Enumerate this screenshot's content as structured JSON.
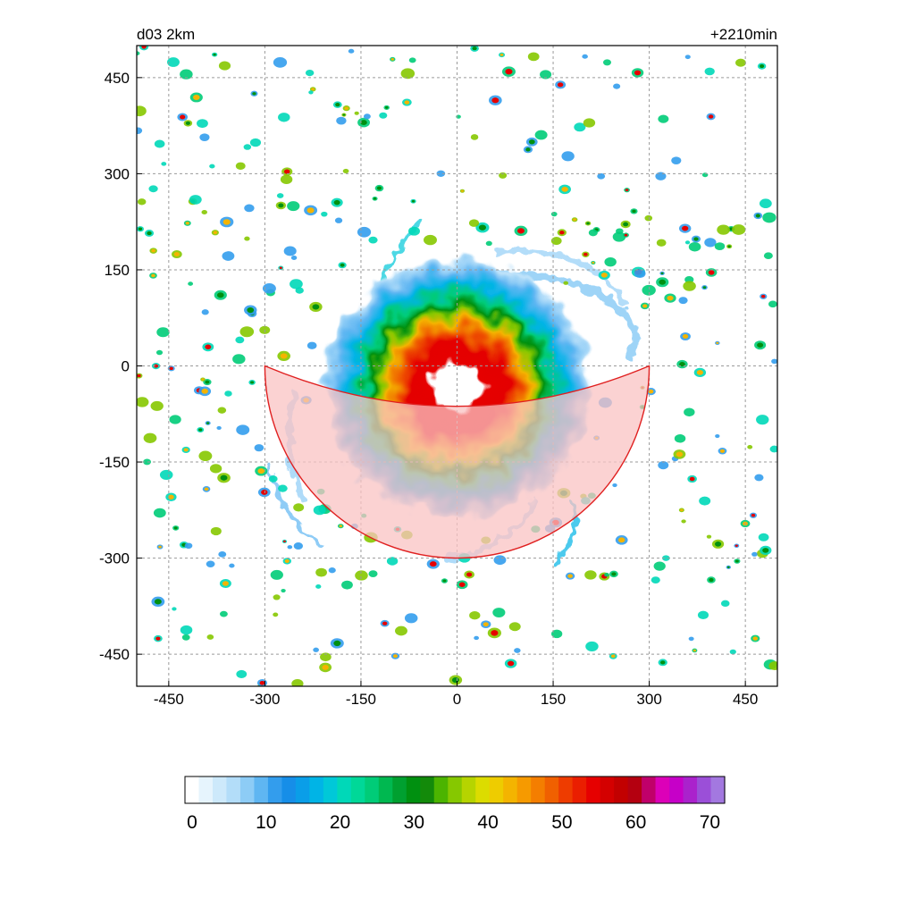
{
  "header": {
    "left_label": "d03 2km",
    "right_label": "+2210min"
  },
  "map": {
    "x_ticks": [
      "-450",
      "-300",
      "-150",
      "0",
      "150",
      "300",
      "450"
    ],
    "y_ticks": [
      "450",
      "300",
      "150",
      "0",
      "-150",
      "-300",
      "-450"
    ],
    "x_tick_values": [
      -450,
      -300,
      -150,
      0,
      150,
      300,
      450
    ],
    "y_tick_values": [
      450,
      300,
      150,
      0,
      -150,
      -300,
      -450
    ],
    "extent": {
      "xmin": -500,
      "xmax": 500,
      "ymin": -500,
      "ymax": 500
    },
    "grid": "dashed",
    "storm_center": {
      "x": 0,
      "y": -35
    },
    "eye_radius": 30,
    "highlight_sector": {
      "center_x": 0,
      "center_y": 0,
      "radius": 300,
      "from_direction": "west",
      "to_direction": "east",
      "side": "south",
      "fill_color": "#f9c3c3",
      "edge_color": "#e02020"
    }
  },
  "colorbar": {
    "tick_labels": [
      "0",
      "10",
      "20",
      "30",
      "40",
      "50",
      "60",
      "70"
    ],
    "tick_values": [
      0,
      10,
      20,
      30,
      40,
      50,
      60,
      70
    ],
    "min": 0,
    "max": 72,
    "colors": [
      "#ffffff",
      "#e6f4fd",
      "#cde9fb",
      "#b3ddf9",
      "#8dccf6",
      "#5fb6f2",
      "#339ded",
      "#168ee8",
      "#0a9ee8",
      "#00b4e6",
      "#00c8d8",
      "#00d8b8",
      "#00d898",
      "#00cc78",
      "#00b850",
      "#00a030",
      "#009010",
      "#138a0a",
      "#4cb400",
      "#86c800",
      "#b6d400",
      "#dcdc00",
      "#eecc00",
      "#f4b400",
      "#f69a00",
      "#f47e00",
      "#f06000",
      "#ee3c00",
      "#ea1e00",
      "#e60000",
      "#d40000",
      "#c20000",
      "#b40010",
      "#c0006a",
      "#dc00b8",
      "#c600c8",
      "#aa22cc",
      "#9b4fd8",
      "#a378e0"
    ]
  }
}
